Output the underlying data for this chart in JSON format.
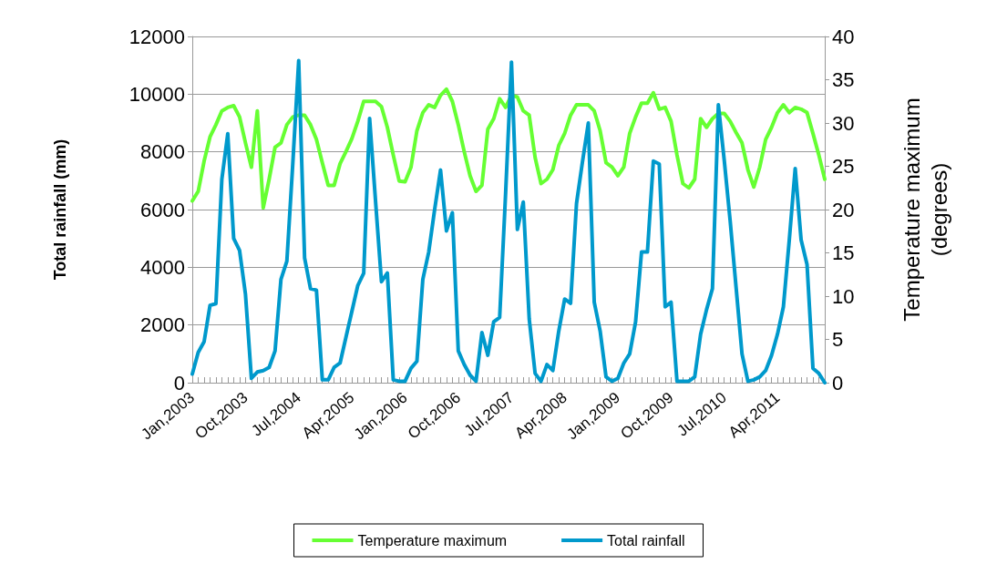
{
  "chart_data": {
    "type": "line",
    "ylabel": "Total rainfall (mm)",
    "y2label": "Temperature maximum\n(degrees)",
    "categories": [
      "Jan,2003",
      null,
      null,
      null,
      null,
      null,
      null,
      null,
      null,
      "Oct,2003",
      null,
      null,
      null,
      null,
      null,
      null,
      null,
      null,
      "Jul,2004",
      null,
      null,
      null,
      null,
      null,
      null,
      null,
      null,
      "Apr,2005",
      null,
      null,
      null,
      null,
      null,
      null,
      null,
      null,
      "Jan,2006",
      null,
      null,
      null,
      null,
      null,
      null,
      null,
      null,
      "Oct,2006",
      null,
      null,
      null,
      null,
      null,
      null,
      null,
      null,
      "Jul,2007",
      null,
      null,
      null,
      null,
      null,
      null,
      null,
      null,
      "Apr,2008",
      null,
      null,
      null,
      null,
      null,
      null,
      null,
      null,
      "Jan,2009",
      null,
      null,
      null,
      null,
      null,
      null,
      null,
      null,
      "Oct,2009",
      null,
      null,
      null,
      null,
      null,
      null,
      null,
      null,
      "Jul,2010",
      null,
      null,
      null,
      null,
      null,
      null,
      null,
      null,
      "Apr,2011",
      null,
      null,
      null,
      null,
      null,
      null,
      null,
      null
    ],
    "series": [
      {
        "name": "Temperature maximum",
        "color": "#66ff33",
        "axis": "y2",
        "values": [
          21.0,
          22.1,
          25.6,
          28.4,
          29.8,
          31.4,
          31.8,
          32.0,
          30.7,
          27.7,
          24.9,
          31.4,
          20.2,
          23.5,
          27.2,
          27.7,
          29.8,
          30.7,
          30.9,
          30.9,
          29.8,
          28.1,
          25.4,
          22.8,
          22.8,
          25.3,
          26.7,
          28.2,
          30.2,
          32.5,
          32.5,
          32.5,
          31.9,
          29.5,
          26.3,
          23.3,
          23.2,
          24.9,
          29.1,
          31.2,
          32.1,
          31.8,
          33.2,
          33.9,
          32.5,
          29.8,
          26.7,
          23.9,
          22.1,
          22.8,
          29.3,
          30.5,
          32.8,
          31.8,
          33.2,
          33.0,
          31.4,
          30.9,
          26.0,
          23.0,
          23.5,
          24.6,
          27.4,
          28.8,
          30.9,
          32.1,
          32.1,
          32.1,
          31.4,
          29.1,
          25.4,
          24.9,
          23.9,
          24.9,
          28.8,
          30.7,
          32.3,
          32.3,
          33.5,
          31.6,
          31.8,
          30.2,
          26.3,
          23.0,
          22.5,
          23.5,
          30.5,
          29.5,
          30.5,
          31.1,
          31.1,
          30.2,
          28.9,
          27.7,
          24.6,
          22.6,
          24.9,
          28.1,
          29.5,
          31.2,
          32.1,
          31.2,
          31.8,
          31.6,
          31.2,
          28.8,
          26.3,
          23.5
        ]
      },
      {
        "name": "Total rainfall",
        "color": "#0099cc",
        "values": [
          300,
          1050,
          1420,
          2680,
          2740,
          7050,
          8630,
          5000,
          4580,
          3060,
          150,
          370,
          420,
          530,
          1100,
          3580,
          4210,
          7580,
          11160,
          4320,
          3260,
          3210,
          100,
          100,
          530,
          680,
          1580,
          2470,
          3370,
          3790,
          9160,
          6300,
          3500,
          3800,
          100,
          50,
          50,
          500,
          740,
          3580,
          4530,
          6000,
          7370,
          5260,
          5890,
          1100,
          630,
          260,
          50,
          1740,
          950,
          2110,
          2260,
          6530,
          11110,
          5310,
          6260,
          2210,
          320,
          50,
          630,
          420,
          1790,
          2900,
          2750,
          6210,
          7640,
          9000,
          2790,
          1790,
          200,
          50,
          150,
          680,
          1000,
          2110,
          4530,
          4530,
          7680,
          7580,
          2630,
          2790,
          50,
          50,
          50,
          200,
          1680,
          2530,
          3260,
          9630,
          7700,
          5600,
          3300,
          1000,
          50,
          100,
          200,
          420,
          950,
          1680,
          2630,
          4950,
          7420,
          4950,
          4100,
          500,
          320,
          0
        ]
      }
    ],
    "ylim": [
      0,
      12000
    ],
    "yticks": [
      0,
      2000,
      4000,
      6000,
      8000,
      10000,
      12000
    ],
    "y2lim": [
      0,
      40
    ],
    "y2ticks": [
      0,
      5,
      10,
      15,
      20,
      25,
      30,
      35,
      40
    ],
    "grid": "y",
    "legend": "bottom",
    "marker": "none",
    "line_style": "solid"
  }
}
